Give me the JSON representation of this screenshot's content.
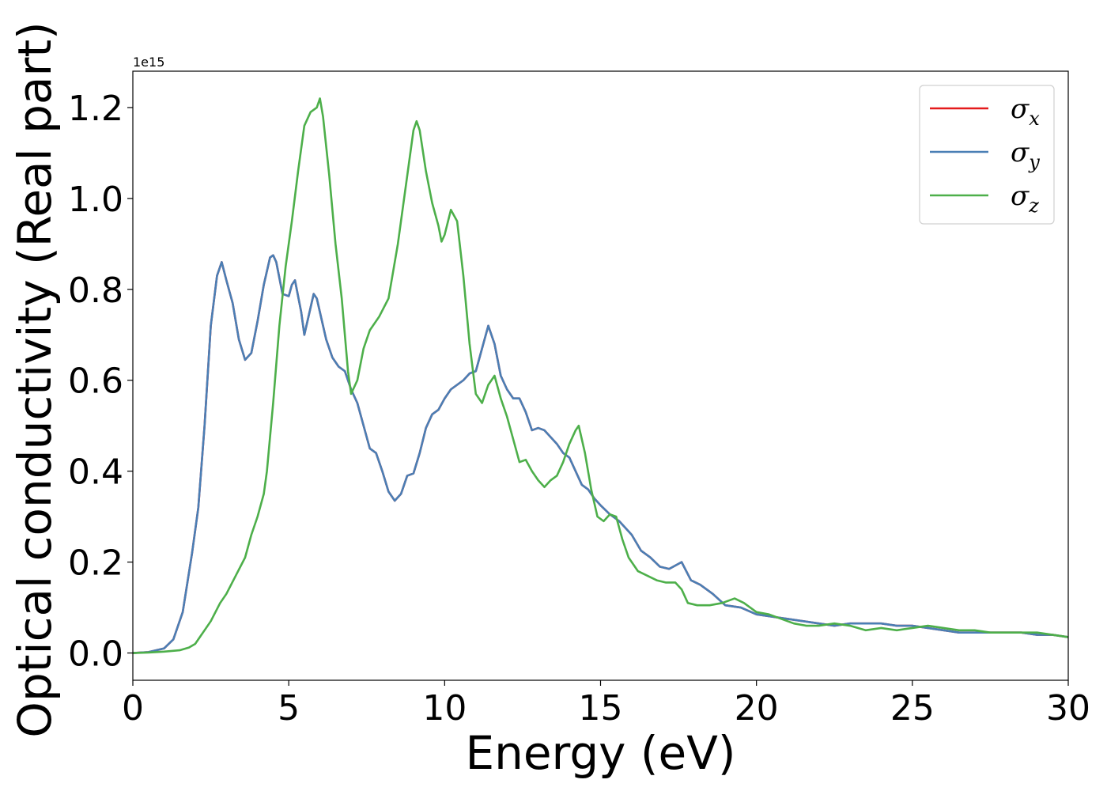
{
  "chart_data": {
    "type": "line",
    "xlabel": "Energy (eV)",
    "ylabel": "Optical conductivity (Real part)",
    "y_offset_text": "1e15",
    "xlim": [
      0,
      30
    ],
    "ylim": [
      -0.06,
      1.28
    ],
    "x_ticks": [
      0,
      5,
      10,
      15,
      20,
      25,
      30
    ],
    "x_tick_labels": [
      "0",
      "5",
      "10",
      "15",
      "20",
      "25",
      "30"
    ],
    "y_ticks": [
      0.0,
      0.2,
      0.4,
      0.6,
      0.8,
      1.0,
      1.2
    ],
    "y_tick_labels": [
      "0.0",
      "0.2",
      "0.4",
      "0.6",
      "0.8",
      "1.0",
      "1.2"
    ],
    "grid": false,
    "legend_position": "top-right",
    "series": [
      {
        "name": "σ",
        "subscript": "x",
        "color": "#e41a1c",
        "x": [
          0,
          0.5,
          1.0,
          1.3,
          1.6,
          1.9,
          2.1,
          2.3,
          2.5,
          2.7,
          2.85,
          3.0,
          3.2,
          3.4,
          3.6,
          3.8,
          4.0,
          4.2,
          4.4,
          4.5,
          4.6,
          4.8,
          5.0,
          5.1,
          5.2,
          5.4,
          5.5,
          5.6,
          5.8,
          5.9,
          6.0,
          6.2,
          6.4,
          6.6,
          6.8,
          7.0,
          7.2,
          7.4,
          7.6,
          7.8,
          8.0,
          8.2,
          8.4,
          8.6,
          8.8,
          9.0,
          9.2,
          9.4,
          9.6,
          9.8,
          10.0,
          10.2,
          10.4,
          10.6,
          10.8,
          11.0,
          11.2,
          11.4,
          11.6,
          11.8,
          12.0,
          12.2,
          12.4,
          12.6,
          12.8,
          13.0,
          13.2,
          13.4,
          13.6,
          13.8,
          14.0,
          14.2,
          14.4,
          14.6,
          14.8,
          15.0,
          15.3,
          15.6,
          16.0,
          16.3,
          16.6,
          16.9,
          17.2,
          17.6,
          17.9,
          18.2,
          18.6,
          19.0,
          19.5,
          20.0,
          20.5,
          21.0,
          21.5,
          22.0,
          22.5,
          23.0,
          23.5,
          24.0,
          24.5,
          25.0,
          25.5,
          26.0,
          26.5,
          27.0,
          27.5,
          28.0,
          28.5,
          29.0,
          29.5,
          30.0
        ],
        "y": [
          0.0,
          0.002,
          0.01,
          0.03,
          0.09,
          0.22,
          0.32,
          0.5,
          0.72,
          0.83,
          0.86,
          0.82,
          0.77,
          0.69,
          0.645,
          0.66,
          0.73,
          0.81,
          0.87,
          0.875,
          0.86,
          0.79,
          0.785,
          0.81,
          0.82,
          0.75,
          0.7,
          0.73,
          0.79,
          0.78,
          0.75,
          0.69,
          0.65,
          0.63,
          0.62,
          0.58,
          0.55,
          0.5,
          0.45,
          0.44,
          0.4,
          0.355,
          0.335,
          0.35,
          0.39,
          0.395,
          0.44,
          0.495,
          0.525,
          0.535,
          0.56,
          0.58,
          0.59,
          0.6,
          0.615,
          0.62,
          0.67,
          0.72,
          0.68,
          0.61,
          0.58,
          0.56,
          0.56,
          0.53,
          0.49,
          0.495,
          0.49,
          0.475,
          0.46,
          0.44,
          0.43,
          0.4,
          0.37,
          0.36,
          0.34,
          0.325,
          0.305,
          0.29,
          0.26,
          0.225,
          0.21,
          0.19,
          0.185,
          0.2,
          0.16,
          0.15,
          0.13,
          0.105,
          0.1,
          0.085,
          0.08,
          0.075,
          0.07,
          0.065,
          0.06,
          0.065,
          0.065,
          0.065,
          0.06,
          0.06,
          0.055,
          0.05,
          0.045,
          0.045,
          0.045,
          0.045,
          0.045,
          0.04,
          0.04,
          0.035
        ]
      },
      {
        "name": "σ",
        "subscript": "y",
        "color": "#4a7fb5",
        "x": [
          0,
          0.5,
          1.0,
          1.3,
          1.6,
          1.9,
          2.1,
          2.3,
          2.5,
          2.7,
          2.85,
          3.0,
          3.2,
          3.4,
          3.6,
          3.8,
          4.0,
          4.2,
          4.4,
          4.5,
          4.6,
          4.8,
          5.0,
          5.1,
          5.2,
          5.4,
          5.5,
          5.6,
          5.8,
          5.9,
          6.0,
          6.2,
          6.4,
          6.6,
          6.8,
          7.0,
          7.2,
          7.4,
          7.6,
          7.8,
          8.0,
          8.2,
          8.4,
          8.6,
          8.8,
          9.0,
          9.2,
          9.4,
          9.6,
          9.8,
          10.0,
          10.2,
          10.4,
          10.6,
          10.8,
          11.0,
          11.2,
          11.4,
          11.6,
          11.8,
          12.0,
          12.2,
          12.4,
          12.6,
          12.8,
          13.0,
          13.2,
          13.4,
          13.6,
          13.8,
          14.0,
          14.2,
          14.4,
          14.6,
          14.8,
          15.0,
          15.3,
          15.6,
          16.0,
          16.3,
          16.6,
          16.9,
          17.2,
          17.6,
          17.9,
          18.2,
          18.6,
          19.0,
          19.5,
          20.0,
          20.5,
          21.0,
          21.5,
          22.0,
          22.5,
          23.0,
          23.5,
          24.0,
          24.5,
          25.0,
          25.5,
          26.0,
          26.5,
          27.0,
          27.5,
          28.0,
          28.5,
          29.0,
          29.5,
          30.0
        ],
        "y": [
          0.0,
          0.002,
          0.01,
          0.03,
          0.09,
          0.22,
          0.32,
          0.5,
          0.72,
          0.83,
          0.86,
          0.82,
          0.77,
          0.69,
          0.645,
          0.66,
          0.73,
          0.81,
          0.87,
          0.875,
          0.86,
          0.79,
          0.785,
          0.81,
          0.82,
          0.75,
          0.7,
          0.73,
          0.79,
          0.78,
          0.75,
          0.69,
          0.65,
          0.63,
          0.62,
          0.58,
          0.55,
          0.5,
          0.45,
          0.44,
          0.4,
          0.355,
          0.335,
          0.35,
          0.39,
          0.395,
          0.44,
          0.495,
          0.525,
          0.535,
          0.56,
          0.58,
          0.59,
          0.6,
          0.615,
          0.62,
          0.67,
          0.72,
          0.68,
          0.61,
          0.58,
          0.56,
          0.56,
          0.53,
          0.49,
          0.495,
          0.49,
          0.475,
          0.46,
          0.44,
          0.43,
          0.4,
          0.37,
          0.36,
          0.34,
          0.325,
          0.305,
          0.29,
          0.26,
          0.225,
          0.21,
          0.19,
          0.185,
          0.2,
          0.16,
          0.15,
          0.13,
          0.105,
          0.1,
          0.085,
          0.08,
          0.075,
          0.07,
          0.065,
          0.06,
          0.065,
          0.065,
          0.065,
          0.06,
          0.06,
          0.055,
          0.05,
          0.045,
          0.045,
          0.045,
          0.045,
          0.045,
          0.04,
          0.04,
          0.035
        ]
      },
      {
        "name": "σ",
        "subscript": "z",
        "color": "#4daf4a",
        "x": [
          0,
          0.5,
          1.0,
          1.5,
          1.8,
          2.0,
          2.2,
          2.5,
          2.8,
          3.0,
          3.3,
          3.6,
          3.8,
          4.0,
          4.2,
          4.3,
          4.5,
          4.7,
          4.9,
          5.1,
          5.3,
          5.5,
          5.7,
          5.9,
          6.0,
          6.1,
          6.3,
          6.5,
          6.7,
          6.9,
          7.0,
          7.2,
          7.4,
          7.6,
          7.9,
          8.2,
          8.5,
          8.8,
          9.0,
          9.1,
          9.2,
          9.4,
          9.6,
          9.8,
          9.9,
          10.0,
          10.2,
          10.4,
          10.6,
          10.8,
          11.0,
          11.2,
          11.4,
          11.6,
          11.8,
          12.0,
          12.2,
          12.4,
          12.6,
          12.8,
          13.0,
          13.2,
          13.4,
          13.6,
          13.8,
          14.0,
          14.2,
          14.3,
          14.5,
          14.7,
          14.9,
          15.1,
          15.3,
          15.5,
          15.7,
          15.9,
          16.2,
          16.5,
          16.8,
          17.1,
          17.4,
          17.6,
          17.8,
          18.1,
          18.5,
          18.9,
          19.3,
          19.6,
          20.0,
          20.4,
          20.8,
          21.2,
          21.6,
          22.0,
          22.5,
          23.0,
          23.5,
          24.0,
          24.5,
          25.0,
          25.5,
          26.0,
          26.5,
          27.0,
          27.5,
          28.0,
          28.5,
          29.0,
          29.5,
          30.0
        ],
        "y": [
          0.0,
          0.001,
          0.003,
          0.006,
          0.012,
          0.02,
          0.04,
          0.07,
          0.11,
          0.13,
          0.17,
          0.21,
          0.26,
          0.3,
          0.35,
          0.4,
          0.55,
          0.72,
          0.85,
          0.95,
          1.06,
          1.16,
          1.19,
          1.2,
          1.22,
          1.18,
          1.05,
          0.9,
          0.78,
          0.62,
          0.57,
          0.6,
          0.67,
          0.71,
          0.74,
          0.78,
          0.9,
          1.05,
          1.15,
          1.17,
          1.15,
          1.06,
          0.99,
          0.94,
          0.905,
          0.92,
          0.975,
          0.95,
          0.83,
          0.68,
          0.57,
          0.55,
          0.59,
          0.61,
          0.56,
          0.52,
          0.47,
          0.42,
          0.425,
          0.4,
          0.38,
          0.365,
          0.38,
          0.39,
          0.42,
          0.46,
          0.49,
          0.5,
          0.44,
          0.36,
          0.3,
          0.29,
          0.305,
          0.3,
          0.25,
          0.21,
          0.18,
          0.17,
          0.16,
          0.155,
          0.155,
          0.14,
          0.11,
          0.105,
          0.105,
          0.11,
          0.12,
          0.11,
          0.09,
          0.085,
          0.075,
          0.065,
          0.06,
          0.06,
          0.065,
          0.06,
          0.05,
          0.055,
          0.05,
          0.055,
          0.06,
          0.055,
          0.05,
          0.05,
          0.045,
          0.045,
          0.045,
          0.045,
          0.04,
          0.035
        ]
      }
    ]
  }
}
